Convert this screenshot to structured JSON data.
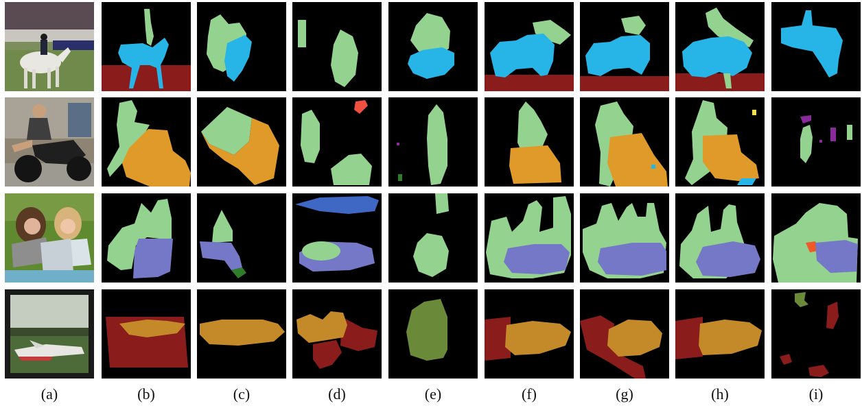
{
  "figure": {
    "column_labels": [
      "(a)",
      "(b)",
      "(c)",
      "(d)",
      "(e)",
      "(f)",
      "(g)",
      "(h)",
      "(i)"
    ],
    "rows": [
      {
        "photo": "horse-rider-photo",
        "segments": [
          "person",
          "horse",
          "ground"
        ]
      },
      {
        "photo": "motorbike-rider-photo",
        "segments": [
          "person",
          "motorbike"
        ]
      },
      {
        "photo": "girls-laptop-photo",
        "segments": [
          "people",
          "laptop"
        ]
      },
      {
        "photo": "airplane-field-photo",
        "segments": [
          "airplane",
          "ground"
        ]
      }
    ]
  },
  "colors": {
    "background": "#000000",
    "person": "#93d38f",
    "horse": "#27b4e6",
    "ground": "#8a1c1c",
    "motorbike": "#e09a2a",
    "laptop": "#7478c6",
    "sky_blue": "#3f67c4",
    "plant": "#2f7d2a",
    "olive": "#6a8a3a",
    "red": "#f05040",
    "purple": "#8a2a9a",
    "tan": "#c48a2a"
  }
}
